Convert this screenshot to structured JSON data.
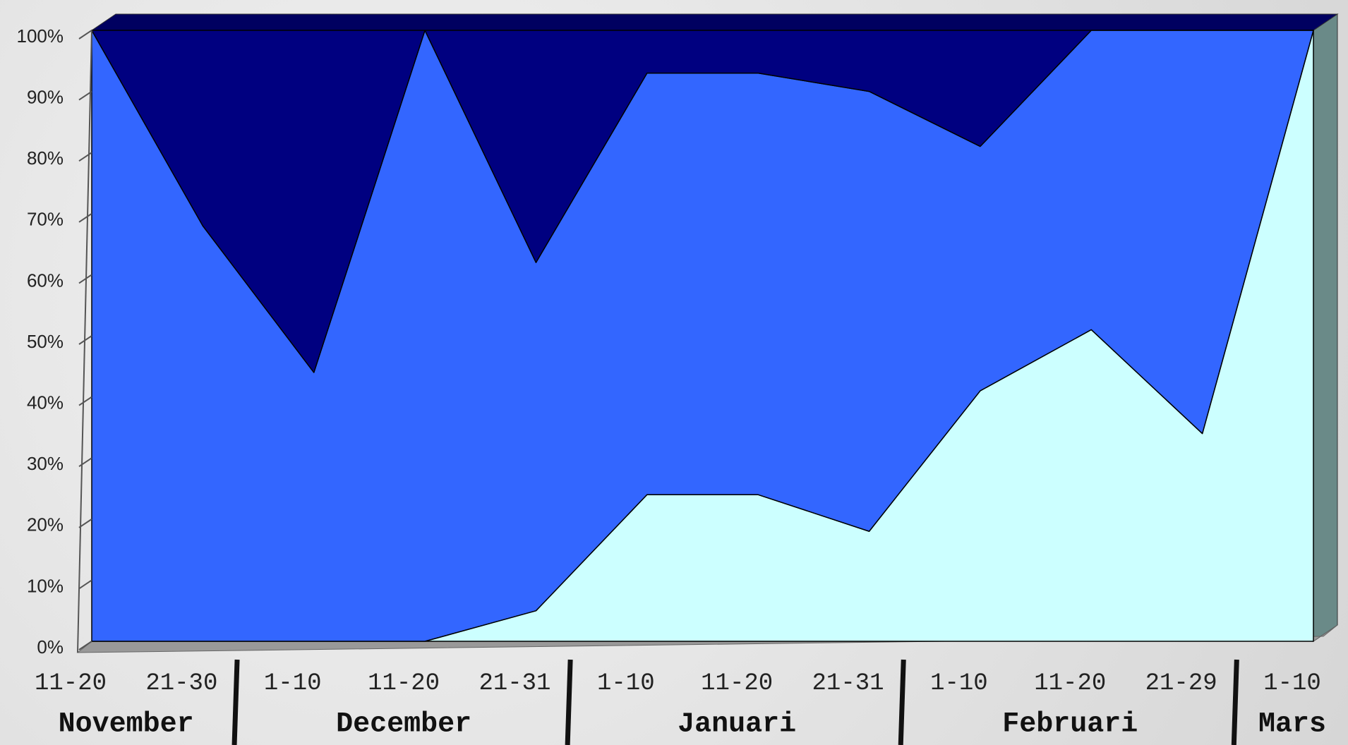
{
  "chart_data": {
    "type": "stacked-area-100",
    "groups": [
      {
        "label": "November",
        "categories": [
          "11-20",
          "21-30"
        ]
      },
      {
        "label": "December",
        "categories": [
          "1-10",
          "11-20",
          "21-31"
        ]
      },
      {
        "label": "Januari",
        "categories": [
          "1-10",
          "11-20",
          "21-31"
        ]
      },
      {
        "label": "Februari",
        "categories": [
          "1-10",
          "11-20",
          "21-29"
        ]
      },
      {
        "label": "Mars",
        "categories": [
          "1-10"
        ]
      }
    ],
    "series": [
      {
        "color": "#ccffff",
        "values": [
          0,
          0,
          0,
          0,
          5,
          24,
          24,
          18,
          41,
          51,
          34,
          100
        ]
      },
      {
        "color": "#3366ff",
        "values": [
          100,
          68,
          44,
          100,
          57,
          69,
          69,
          72,
          40,
          49,
          66,
          0
        ]
      },
      {
        "color": "#000080",
        "values": [
          0,
          32,
          56,
          0,
          38,
          7,
          7,
          10,
          19,
          0,
          0,
          0
        ]
      }
    ],
    "ylim": [
      0,
      100
    ],
    "yticks": [
      {
        "value": 0,
        "label": "0%"
      },
      {
        "value": 10,
        "label": "10%"
      },
      {
        "value": 20,
        "label": "20%"
      },
      {
        "value": 30,
        "label": "30%"
      },
      {
        "value": 40,
        "label": "40%"
      },
      {
        "value": 50,
        "label": "50%"
      },
      {
        "value": 60,
        "label": "60%"
      },
      {
        "value": 70,
        "label": "70%"
      },
      {
        "value": 80,
        "label": "80%"
      },
      {
        "value": 90,
        "label": "90%"
      },
      {
        "value": 100,
        "label": "100%"
      }
    ]
  }
}
